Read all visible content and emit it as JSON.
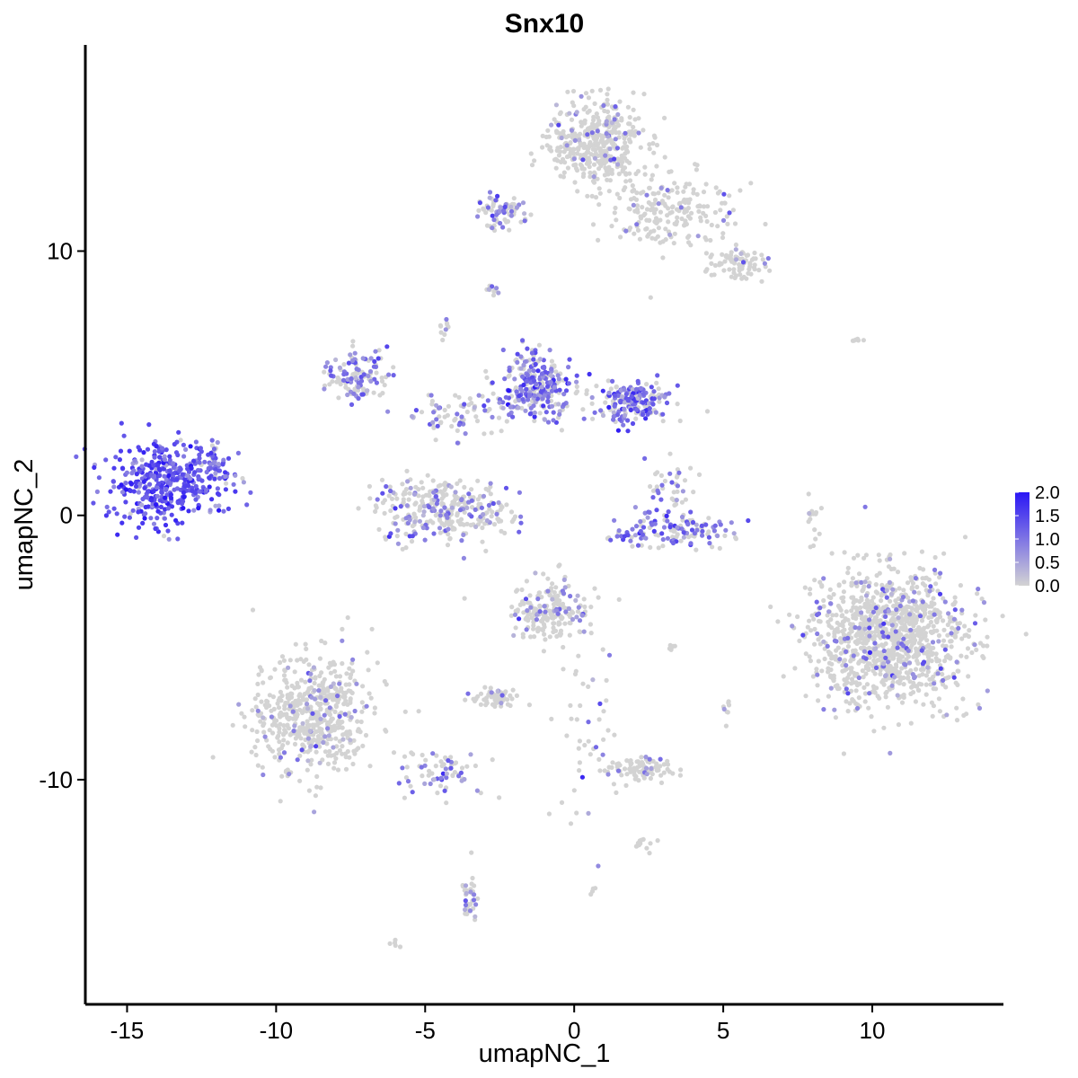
{
  "chart_data": {
    "type": "scatter",
    "title": "Snx10",
    "xlabel": "umapNC_1",
    "ylabel": "umapNC_2",
    "xlim": [
      -16.4,
      14.4
    ],
    "ylim": [
      -18.5,
      17.8
    ],
    "x_ticks": [
      -15,
      -10,
      -5,
      0,
      5,
      10
    ],
    "x_tick_labels": [
      "-15",
      "-10",
      "-5",
      "0",
      "5",
      "10"
    ],
    "y_ticks": [
      -10,
      0,
      10
    ],
    "y_tick_labels": [
      "-10",
      "0",
      "10"
    ],
    "grid": false,
    "legend": {
      "placement": "right",
      "type": "colorbar",
      "labels": [
        "2.0",
        "1.5",
        "1.0",
        "0.5",
        "0.0"
      ],
      "values": [
        2.0,
        1.5,
        1.0,
        0.5,
        0.0
      ],
      "low_color": "#d3d3d3",
      "high_color": "#2a16f5"
    },
    "color_scale": {
      "min": 0.0,
      "max": 2.0,
      "low": "#d3d3d3",
      "high": "#2a16f5"
    },
    "clusters": [
      {
        "cx": -13.7,
        "cy": 1.2,
        "sx": 1.0,
        "sy": 0.8,
        "n": 420,
        "expr_frac": 0.95,
        "expr_mean": 1.35
      },
      {
        "cx": 10.5,
        "cy": -4.6,
        "sx": 1.3,
        "sy": 1.3,
        "n": 1100,
        "expr_frac": 0.13,
        "expr_mean": 0.8
      },
      {
        "cx": 0.8,
        "cy": 14.0,
        "sx": 0.8,
        "sy": 0.8,
        "n": 420,
        "expr_frac": 0.1,
        "expr_mean": 0.75
      },
      {
        "cx": 3.2,
        "cy": 11.6,
        "sx": 1.1,
        "sy": 0.7,
        "n": 200,
        "expr_frac": 0.05,
        "expr_mean": 0.7
      },
      {
        "cx": 5.5,
        "cy": 9.5,
        "sx": 0.5,
        "sy": 0.3,
        "n": 80,
        "expr_frac": 0.08,
        "expr_mean": 0.7
      },
      {
        "cx": -2.5,
        "cy": 11.5,
        "sx": 0.4,
        "sy": 0.3,
        "n": 80,
        "expr_frac": 0.45,
        "expr_mean": 0.9
      },
      {
        "cx": -8.8,
        "cy": -7.5,
        "sx": 1.0,
        "sy": 1.1,
        "n": 560,
        "expr_frac": 0.1,
        "expr_mean": 0.7
      },
      {
        "cx": -4.4,
        "cy": 0.2,
        "sx": 1.1,
        "sy": 0.6,
        "n": 320,
        "expr_frac": 0.3,
        "expr_mean": 0.85
      },
      {
        "cx": -1.3,
        "cy": 4.9,
        "sx": 0.6,
        "sy": 0.6,
        "n": 280,
        "expr_frac": 0.6,
        "expr_mean": 1.05
      },
      {
        "cx": 1.9,
        "cy": 4.3,
        "sx": 0.6,
        "sy": 0.4,
        "n": 180,
        "expr_frac": 0.7,
        "expr_mean": 1.1
      },
      {
        "cx": -7.3,
        "cy": 5.3,
        "sx": 0.5,
        "sy": 0.5,
        "n": 120,
        "expr_frac": 0.5,
        "expr_mean": 0.95
      },
      {
        "cx": -0.8,
        "cy": -3.6,
        "sx": 0.6,
        "sy": 0.6,
        "n": 200,
        "expr_frac": 0.2,
        "expr_mean": 0.75
      },
      {
        "cx": 3.3,
        "cy": -0.6,
        "sx": 1.0,
        "sy": 0.3,
        "n": 140,
        "expr_frac": 0.55,
        "expr_mean": 1.1
      },
      {
        "cx": 2.3,
        "cy": -9.6,
        "sx": 0.6,
        "sy": 0.2,
        "n": 90,
        "expr_frac": 0.08,
        "expr_mean": 0.7
      },
      {
        "cx": -2.6,
        "cy": -6.9,
        "sx": 0.4,
        "sy": 0.2,
        "n": 60,
        "expr_frac": 0.05,
        "expr_mean": 0.7
      },
      {
        "cx": -4.5,
        "cy": -9.6,
        "sx": 0.7,
        "sy": 0.5,
        "n": 70,
        "expr_frac": 0.4,
        "expr_mean": 0.9
      },
      {
        "cx": -3.5,
        "cy": -14.4,
        "sx": 0.15,
        "sy": 0.6,
        "n": 35,
        "expr_frac": 0.5,
        "expr_mean": 0.9
      },
      {
        "cx": -12.0,
        "cy": 2.0,
        "sx": 0.4,
        "sy": 0.6,
        "n": 40,
        "expr_frac": 0.8,
        "expr_mean": 1.1
      },
      {
        "cx": -3.8,
        "cy": 3.8,
        "sx": 1.0,
        "sy": 0.4,
        "n": 80,
        "expr_frac": 0.4,
        "expr_mean": 0.9
      },
      {
        "cx": 8.0,
        "cy": -0.5,
        "sx": 0.12,
        "sy": 0.7,
        "n": 15,
        "expr_frac": 0.05,
        "expr_mean": 0.7
      },
      {
        "cx": 0.5,
        "cy": -9.0,
        "sx": 0.5,
        "sy": 2.0,
        "n": 50,
        "expr_frac": 0.15,
        "expr_mean": 0.8
      },
      {
        "cx": 2.3,
        "cy": -12.5,
        "sx": 0.2,
        "sy": 0.2,
        "n": 12,
        "expr_frac": 0.05,
        "expr_mean": 0.7
      },
      {
        "cx": -6.0,
        "cy": -16.2,
        "sx": 0.1,
        "sy": 0.1,
        "n": 5,
        "expr_frac": 0.0,
        "expr_mean": 0.5
      },
      {
        "cx": 0.7,
        "cy": -14.2,
        "sx": 0.08,
        "sy": 0.08,
        "n": 4,
        "expr_frac": 0.0,
        "expr_mean": 0.5
      },
      {
        "cx": 9.5,
        "cy": 6.6,
        "sx": 0.12,
        "sy": 0.06,
        "n": 6,
        "expr_frac": 0.0,
        "expr_mean": 0.5
      },
      {
        "cx": 3.2,
        "cy": 1.1,
        "sx": 0.4,
        "sy": 0.6,
        "n": 40,
        "expr_frac": 0.3,
        "expr_mean": 0.9
      },
      {
        "cx": -2.7,
        "cy": 8.5,
        "sx": 0.1,
        "sy": 0.15,
        "n": 10,
        "expr_frac": 0.6,
        "expr_mean": 0.9
      },
      {
        "cx": -4.4,
        "cy": 7.2,
        "sx": 0.1,
        "sy": 0.25,
        "n": 10,
        "expr_frac": 0.3,
        "expr_mean": 0.8
      },
      {
        "cx": 5.1,
        "cy": -7.4,
        "sx": 0.1,
        "sy": 0.3,
        "n": 8,
        "expr_frac": 0.2,
        "expr_mean": 0.8
      },
      {
        "cx": 3.3,
        "cy": -5.0,
        "sx": 0.15,
        "sy": 0.08,
        "n": 6,
        "expr_frac": 0.0,
        "expr_mean": 0.5
      }
    ]
  }
}
